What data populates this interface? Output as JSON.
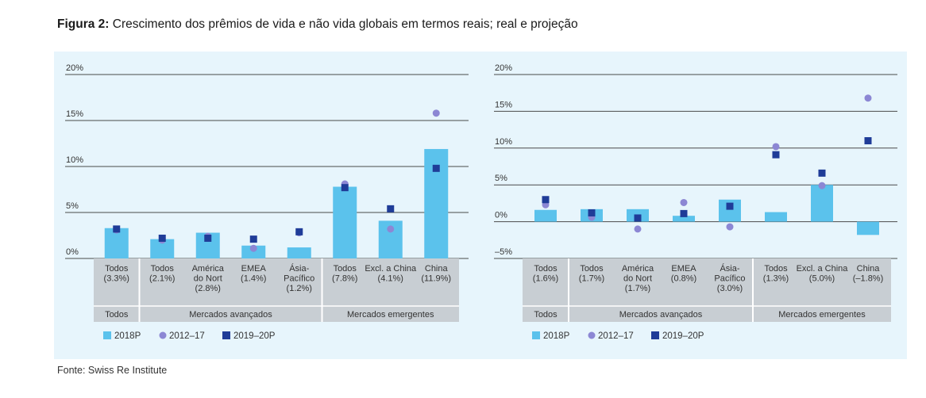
{
  "figure": {
    "label": "Figura 2:",
    "title": "Crescimento dos prêmios de vida e não vida globais em termos reais; real e projeção",
    "source": "Fonte: Swiss Re Institute"
  },
  "colors": {
    "bar": "#5bc2ec",
    "circle": "#8c87d4",
    "square": "#1f3c98",
    "label_band": "#c8ced3"
  },
  "chart_data": [
    {
      "type": "bar",
      "ylim": [
        0,
        20
      ],
      "ytick_labels": [
        "0%",
        "5%",
        "10%",
        "15%",
        "20%"
      ],
      "ytick_values": [
        0,
        5,
        10,
        15,
        20
      ],
      "categories": [
        [
          "Todos",
          "(3.3%)"
        ],
        [
          "Todos",
          "(2.1%)"
        ],
        [
          "América",
          "do Nort",
          "(2.8%)"
        ],
        [
          "EMEA",
          "(1.4%)"
        ],
        [
          "Ásia-",
          "Pacífico",
          "(1.2%)"
        ],
        [
          "Todos",
          "(7.8%)"
        ],
        [
          "Excl. a China",
          "(4.1%)"
        ],
        [
          "China",
          "(11.9%)"
        ]
      ],
      "groups": [
        {
          "label": "Todos",
          "count": 1
        },
        {
          "label": "Mercados avançados",
          "count": 4
        },
        {
          "label": "Mercados emergentes",
          "count": 3
        }
      ],
      "series": [
        {
          "name": "2018P",
          "marker": "bar",
          "values": [
            3.3,
            2.1,
            2.8,
            1.4,
            1.2,
            7.8,
            4.1,
            11.9
          ]
        },
        {
          "name": "2012–17",
          "marker": "circle",
          "values": [
            3.1,
            2.0,
            2.4,
            1.1,
            2.8,
            8.1,
            3.2,
            15.8
          ]
        },
        {
          "name": "2019–20P",
          "marker": "square",
          "values": [
            3.2,
            2.2,
            2.2,
            2.1,
            2.9,
            7.7,
            5.4,
            9.8
          ]
        }
      ]
    },
    {
      "type": "bar",
      "ylim": [
        -5,
        20
      ],
      "ytick_labels": [
        "–5%",
        "0%",
        "5%",
        "10%",
        "15%",
        "20%"
      ],
      "ytick_values": [
        -5,
        0,
        5,
        10,
        15,
        20
      ],
      "categories": [
        [
          "Todos",
          "(1.6%)"
        ],
        [
          "Todos",
          "(1.7%)"
        ],
        [
          "América",
          "do Nort",
          "(1.7%)"
        ],
        [
          "EMEA",
          "(0.8%)"
        ],
        [
          "Ásia-",
          "Pacífico",
          "(3.0%)"
        ],
        [
          "Todos",
          "(1.3%)"
        ],
        [
          "Excl. a China",
          "(5.0%)"
        ],
        [
          "China",
          "(–1.8%)"
        ]
      ],
      "groups": [
        {
          "label": "Todos",
          "count": 1
        },
        {
          "label": "Mercados avançados",
          "count": 4
        },
        {
          "label": "Mercados emergentes",
          "count": 3
        }
      ],
      "series": [
        {
          "name": "2018P",
          "marker": "bar",
          "values": [
            1.6,
            1.7,
            1.7,
            0.8,
            3.0,
            1.3,
            5.0,
            -1.8
          ]
        },
        {
          "name": "2012–17",
          "marker": "circle",
          "values": [
            2.3,
            0.6,
            -1.0,
            2.6,
            -0.7,
            10.2,
            4.9,
            16.8
          ]
        },
        {
          "name": "2019–20P",
          "marker": "square",
          "values": [
            3.0,
            1.2,
            0.5,
            1.1,
            2.1,
            9.1,
            6.6,
            11.0
          ]
        }
      ]
    }
  ]
}
